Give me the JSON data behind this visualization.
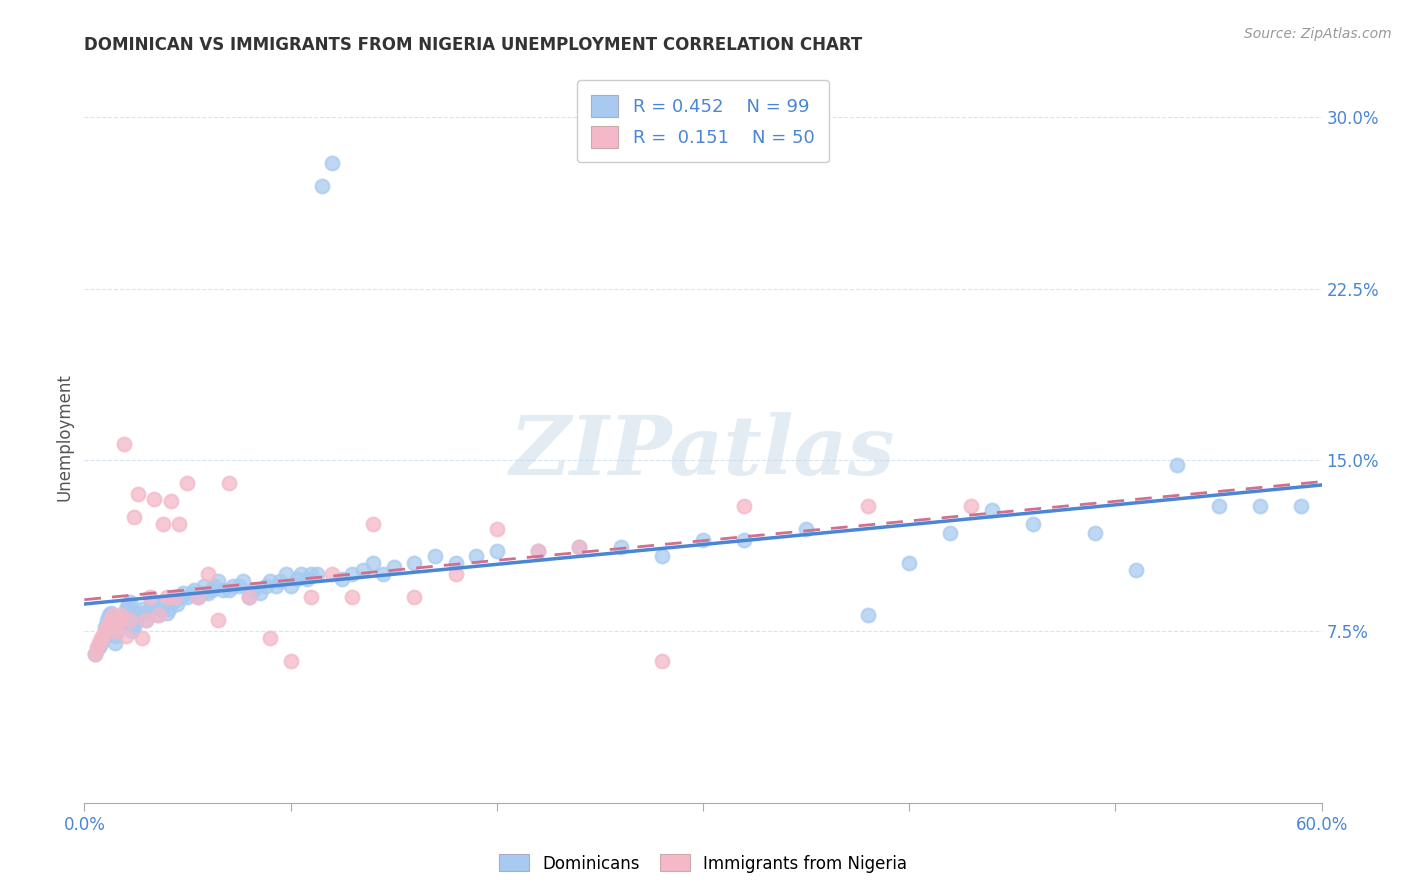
{
  "title": "DOMINICAN VS IMMIGRANTS FROM NIGERIA UNEMPLOYMENT CORRELATION CHART",
  "source": "Source: ZipAtlas.com",
  "ylabel": "Unemployment",
  "xlim": [
    0.0,
    0.6
  ],
  "ylim": [
    0.0,
    0.32
  ],
  "yticks": [
    0.075,
    0.15,
    0.225,
    0.3
  ],
  "ytick_labels": [
    "7.5%",
    "15.0%",
    "22.5%",
    "30.0%"
  ],
  "xticks": [
    0.0,
    0.1,
    0.2,
    0.3,
    0.4,
    0.5,
    0.6
  ],
  "xtick_labels": [
    "0.0%",
    "",
    "",
    "",
    "",
    "",
    "60.0%"
  ],
  "blue_color": "#a8caf0",
  "pink_color": "#f4b8c8",
  "blue_line_color": "#4a86d4",
  "pink_line_color": "#d07090",
  "axis_label_color": "#4a86d4",
  "background_color": "#ffffff",
  "grid_color": "#d8e4f0",
  "watermark": "ZIPatlas",
  "dominicans_x": [
    0.005,
    0.007,
    0.008,
    0.009,
    0.01,
    0.01,
    0.01,
    0.011,
    0.012,
    0.013,
    0.015,
    0.015,
    0.016,
    0.017,
    0.018,
    0.019,
    0.02,
    0.02,
    0.021,
    0.022,
    0.023,
    0.024,
    0.025,
    0.026,
    0.027,
    0.028,
    0.03,
    0.031,
    0.032,
    0.033,
    0.035,
    0.037,
    0.038,
    0.04,
    0.041,
    0.043,
    0.045,
    0.047,
    0.048,
    0.05,
    0.052,
    0.053,
    0.055,
    0.057,
    0.058,
    0.06,
    0.062,
    0.063,
    0.065,
    0.067,
    0.07,
    0.072,
    0.075,
    0.077,
    0.08,
    0.082,
    0.085,
    0.088,
    0.09,
    0.093,
    0.095,
    0.098,
    0.1,
    0.103,
    0.105,
    0.108,
    0.11,
    0.113,
    0.115,
    0.12,
    0.125,
    0.13,
    0.135,
    0.14,
    0.145,
    0.15,
    0.16,
    0.17,
    0.18,
    0.19,
    0.2,
    0.22,
    0.24,
    0.26,
    0.28,
    0.3,
    0.32,
    0.35,
    0.38,
    0.4,
    0.42,
    0.44,
    0.46,
    0.49,
    0.51,
    0.53,
    0.55,
    0.57,
    0.59
  ],
  "dominicans_y": [
    0.065,
    0.068,
    0.07,
    0.072,
    0.073,
    0.075,
    0.077,
    0.08,
    0.082,
    0.083,
    0.07,
    0.073,
    0.075,
    0.078,
    0.08,
    0.082,
    0.083,
    0.085,
    0.087,
    0.088,
    0.075,
    0.077,
    0.08,
    0.082,
    0.083,
    0.085,
    0.08,
    0.083,
    0.085,
    0.088,
    0.082,
    0.085,
    0.087,
    0.083,
    0.085,
    0.088,
    0.087,
    0.09,
    0.092,
    0.09,
    0.092,
    0.093,
    0.09,
    0.092,
    0.095,
    0.092,
    0.093,
    0.095,
    0.097,
    0.093,
    0.093,
    0.095,
    0.095,
    0.097,
    0.09,
    0.093,
    0.092,
    0.095,
    0.097,
    0.095,
    0.097,
    0.1,
    0.095,
    0.098,
    0.1,
    0.098,
    0.1,
    0.1,
    0.27,
    0.28,
    0.098,
    0.1,
    0.102,
    0.105,
    0.1,
    0.103,
    0.105,
    0.108,
    0.105,
    0.108,
    0.11,
    0.11,
    0.112,
    0.112,
    0.108,
    0.115,
    0.115,
    0.12,
    0.082,
    0.105,
    0.118,
    0.128,
    0.122,
    0.118,
    0.102,
    0.148,
    0.13,
    0.13,
    0.13
  ],
  "nigeria_x": [
    0.005,
    0.006,
    0.007,
    0.008,
    0.009,
    0.01,
    0.011,
    0.012,
    0.013,
    0.014,
    0.015,
    0.016,
    0.017,
    0.018,
    0.019,
    0.02,
    0.022,
    0.024,
    0.026,
    0.028,
    0.03,
    0.032,
    0.034,
    0.036,
    0.038,
    0.04,
    0.042,
    0.044,
    0.046,
    0.05,
    0.055,
    0.06,
    0.065,
    0.07,
    0.08,
    0.09,
    0.1,
    0.11,
    0.12,
    0.13,
    0.14,
    0.16,
    0.18,
    0.2,
    0.22,
    0.24,
    0.28,
    0.32,
    0.38,
    0.43
  ],
  "nigeria_y": [
    0.065,
    0.068,
    0.07,
    0.072,
    0.073,
    0.075,
    0.077,
    0.078,
    0.08,
    0.082,
    0.075,
    0.078,
    0.08,
    0.082,
    0.157,
    0.073,
    0.08,
    0.125,
    0.135,
    0.072,
    0.08,
    0.09,
    0.133,
    0.082,
    0.122,
    0.09,
    0.132,
    0.09,
    0.122,
    0.14,
    0.09,
    0.1,
    0.08,
    0.14,
    0.09,
    0.072,
    0.062,
    0.09,
    0.1,
    0.09,
    0.122,
    0.09,
    0.1,
    0.12,
    0.11,
    0.112,
    0.062,
    0.13,
    0.13,
    0.13
  ]
}
